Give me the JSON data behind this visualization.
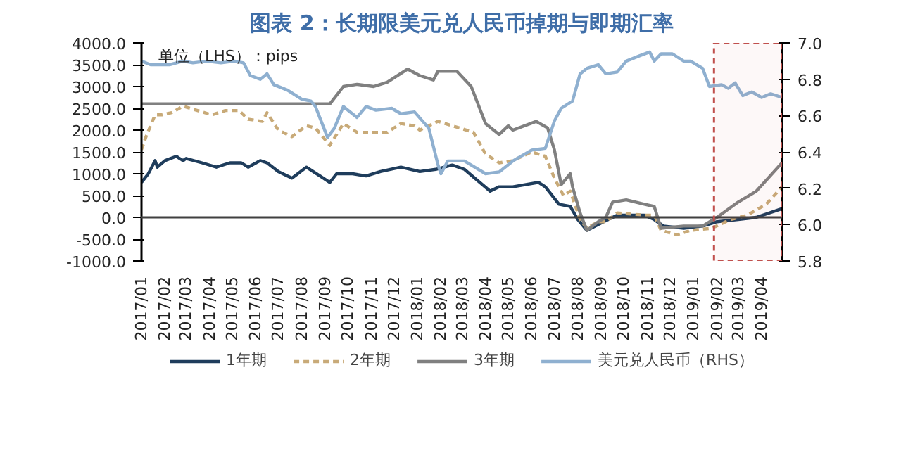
{
  "chart_data": {
    "type": "line",
    "title": "图表 2：长期限美元兑人民币掉期与即期汇率",
    "annotations": [
      "单位（LHS）：pips"
    ],
    "xlim": [
      "2017-01-01",
      "2019-04-28"
    ],
    "xticks": [
      {
        "value": "2017-01-01",
        "label": "2017/01"
      },
      {
        "value": "2017-02-01",
        "label": "2017/02"
      },
      {
        "value": "2017-03-01",
        "label": "2017/03"
      },
      {
        "value": "2017-04-01",
        "label": "2017/04"
      },
      {
        "value": "2017-05-01",
        "label": "2017/05"
      },
      {
        "value": "2017-06-01",
        "label": "2017/06"
      },
      {
        "value": "2017-07-01",
        "label": "2017/07"
      },
      {
        "value": "2017-08-01",
        "label": "2017/08"
      },
      {
        "value": "2017-09-01",
        "label": "2017/09"
      },
      {
        "value": "2017-10-01",
        "label": "2017/10"
      },
      {
        "value": "2017-11-01",
        "label": "2017/11"
      },
      {
        "value": "2017-12-01",
        "label": "2017/12"
      },
      {
        "value": "2018-01-01",
        "label": "2018/01"
      },
      {
        "value": "2018-02-01",
        "label": "2018/02"
      },
      {
        "value": "2018-03-01",
        "label": "2018/03"
      },
      {
        "value": "2018-04-01",
        "label": "2018/04"
      },
      {
        "value": "2018-05-01",
        "label": "2018/05"
      },
      {
        "value": "2018-06-01",
        "label": "2018/06"
      },
      {
        "value": "2018-07-01",
        "label": "2018/07"
      },
      {
        "value": "2018-08-01",
        "label": "2018/08"
      },
      {
        "value": "2018-09-01",
        "label": "2018/09"
      },
      {
        "value": "2018-10-01",
        "label": "2018/10"
      },
      {
        "value": "2018-11-01",
        "label": "2018/11"
      },
      {
        "value": "2018-12-01",
        "label": "2018/12"
      },
      {
        "value": "2019-01-01",
        "label": "2019/01"
      },
      {
        "value": "2019-02-01",
        "label": "2019/02"
      },
      {
        "value": "2019-03-01",
        "label": "2019/03"
      },
      {
        "value": "2019-04-01",
        "label": "2019/04"
      }
    ],
    "ylim": [
      -1000,
      4000
    ],
    "yticks": [
      {
        "value": -1000,
        "label": "-1000.0"
      },
      {
        "value": -500,
        "label": "-500.0"
      },
      {
        "value": 0,
        "label": "0.0"
      },
      {
        "value": 500,
        "label": "500.0"
      },
      {
        "value": 1000,
        "label": "1000.0"
      },
      {
        "value": 1500,
        "label": "1500.0"
      },
      {
        "value": 2000,
        "label": "2000.0"
      },
      {
        "value": 2500,
        "label": "2500.0"
      },
      {
        "value": 3000,
        "label": "3000.0"
      },
      {
        "value": 3500,
        "label": "3500.0"
      },
      {
        "value": 4000,
        "label": "4000.0"
      }
    ],
    "y2lim": [
      5.8,
      7.0
    ],
    "y2ticks": [
      {
        "value": 5.8,
        "label": "5.8"
      },
      {
        "value": 6.0,
        "label": "6.0"
      },
      {
        "value": 6.2,
        "label": "6.2"
      },
      {
        "value": 6.4,
        "label": "6.4"
      },
      {
        "value": 6.6,
        "label": "6.6"
      },
      {
        "value": 6.8,
        "label": "6.8"
      },
      {
        "value": 7.0,
        "label": "7.0"
      }
    ],
    "grid": false,
    "legend": "bottom",
    "ref_lines": [
      {
        "axis": "y",
        "value": 0,
        "color": "#404040"
      }
    ],
    "bands": [
      {
        "axis": "x",
        "from": "2019-01-28",
        "to": "2019-04-28",
        "color": "#c0504d"
      }
    ],
    "series": [
      {
        "name": "1年期",
        "color": "#1f3d5c",
        "line_style": "solid",
        "x": [
          "2017-01-01",
          "2017-01-10",
          "2017-01-19",
          "2017-01-22",
          "2017-02-01",
          "2017-02-16",
          "2017-02-25",
          "2017-03-01",
          "2017-03-22",
          "2017-04-10",
          "2017-04-28",
          "2017-05-13",
          "2017-05-22",
          "2017-06-07",
          "2017-06-16",
          "2017-07-01",
          "2017-07-19",
          "2017-08-07",
          "2017-08-25",
          "2017-09-07",
          "2017-09-16",
          "2017-10-07",
          "2017-10-25",
          "2017-11-13",
          "2017-12-10",
          "2018-01-04",
          "2018-01-25",
          "2018-02-16",
          "2018-03-04",
          "2018-04-07",
          "2018-04-19",
          "2018-05-07",
          "2018-06-10",
          "2018-06-19",
          "2018-07-07",
          "2018-07-22",
          "2018-08-01",
          "2018-08-13",
          "2018-09-04",
          "2018-09-22",
          "2018-10-28",
          "2018-11-10",
          "2018-11-22",
          "2018-12-19",
          "2019-01-13",
          "2019-02-01",
          "2019-03-01",
          "2019-03-25",
          "2019-04-28"
        ],
        "values": [
          800,
          1000,
          1300,
          1150,
          1300,
          1400,
          1300,
          1350,
          1250,
          1150,
          1250,
          1250,
          1150,
          1300,
          1250,
          1050,
          900,
          1150,
          950,
          800,
          1000,
          1000,
          950,
          1050,
          1150,
          1050,
          1100,
          1200,
          1100,
          600,
          700,
          700,
          800,
          700,
          300,
          250,
          -50,
          -300,
          -100,
          50,
          50,
          -50,
          -200,
          -250,
          -200,
          -100,
          -50,
          0,
          200
        ]
      },
      {
        "name": "2年期",
        "color": "#c8aa78",
        "line_style": "dashed",
        "x": [
          "2017-01-01",
          "2017-01-07",
          "2017-01-19",
          "2017-01-28",
          "2017-02-10",
          "2017-02-25",
          "2017-03-16",
          "2017-04-04",
          "2017-04-22",
          "2017-05-10",
          "2017-05-22",
          "2017-06-10",
          "2017-06-16",
          "2017-07-01",
          "2017-07-19",
          "2017-08-07",
          "2017-08-19",
          "2017-09-07",
          "2017-09-25",
          "2017-10-13",
          "2017-11-07",
          "2017-11-22",
          "2017-12-10",
          "2017-12-28",
          "2018-01-04",
          "2018-01-28",
          "2018-02-16",
          "2018-03-16",
          "2018-04-01",
          "2018-04-19",
          "2018-05-07",
          "2018-06-01",
          "2018-06-19",
          "2018-07-01",
          "2018-07-13",
          "2018-07-22",
          "2018-08-04",
          "2018-08-13",
          "2018-08-28",
          "2018-09-07",
          "2018-09-22",
          "2018-10-28",
          "2018-11-10",
          "2018-11-19",
          "2018-12-10",
          "2018-12-28",
          "2019-01-25",
          "2019-02-19",
          "2019-03-13",
          "2019-04-07",
          "2019-04-28"
        ],
        "values": [
          1550,
          1850,
          2350,
          2350,
          2400,
          2550,
          2450,
          2350,
          2450,
          2450,
          2250,
          2200,
          2400,
          2000,
          1850,
          2100,
          2050,
          1650,
          2150,
          1950,
          1950,
          1950,
          2150,
          2100,
          2000,
          2200,
          2100,
          1950,
          1450,
          1250,
          1300,
          1500,
          1400,
          900,
          500,
          600,
          -50,
          -250,
          -100,
          -100,
          100,
          50,
          50,
          -300,
          -400,
          -300,
          -250,
          -50,
          50,
          300,
          700
        ]
      },
      {
        "name": "3年期",
        "color": "#808080",
        "line_style": "solid",
        "x": [
          "2017-01-01",
          "2017-09-07",
          "2017-09-25",
          "2017-10-13",
          "2017-11-04",
          "2017-11-22",
          "2017-12-10",
          "2017-12-19",
          "2018-01-04",
          "2018-01-22",
          "2018-01-28",
          "2018-02-22",
          "2018-03-13",
          "2018-04-01",
          "2018-04-19",
          "2018-05-01",
          "2018-05-07",
          "2018-06-07",
          "2018-06-22",
          "2018-07-01",
          "2018-07-10",
          "2018-07-22",
          "2018-07-25",
          "2018-08-04",
          "2018-08-13",
          "2018-08-28",
          "2018-09-07",
          "2018-09-16",
          "2018-10-04",
          "2018-10-28",
          "2018-11-10",
          "2018-11-19",
          "2018-12-19",
          "2019-01-13",
          "2019-02-01",
          "2019-03-01",
          "2019-03-25",
          "2019-04-28"
        ],
        "values": [
          2600,
          2600,
          3000,
          3050,
          3000,
          3100,
          3300,
          3400,
          3250,
          3150,
          3350,
          3350,
          3000,
          2150,
          1900,
          2100,
          2000,
          2200,
          2050,
          1550,
          750,
          1000,
          700,
          100,
          -300,
          -100,
          0,
          350,
          400,
          300,
          250,
          -250,
          -200,
          -200,
          0,
          350,
          600,
          1250
        ]
      },
      {
        "name": "美元兑人民币（RHS）",
        "color": "#8fb0d0",
        "line_style": "solid",
        "axis": "y2",
        "x": [
          "2017-01-01",
          "2017-01-13",
          "2017-02-07",
          "2017-02-25",
          "2017-03-10",
          "2017-03-28",
          "2017-04-16",
          "2017-05-04",
          "2017-05-16",
          "2017-05-25",
          "2017-06-07",
          "2017-06-16",
          "2017-06-25",
          "2017-07-13",
          "2017-08-01",
          "2017-08-13",
          "2017-08-19",
          "2017-09-04",
          "2017-09-13",
          "2017-09-25",
          "2017-10-13",
          "2017-10-25",
          "2017-11-07",
          "2017-11-28",
          "2017-12-10",
          "2017-12-28",
          "2018-01-16",
          "2018-01-28",
          "2018-02-01",
          "2018-02-10",
          "2018-03-04",
          "2018-04-01",
          "2018-04-19",
          "2018-05-07",
          "2018-06-01",
          "2018-06-19",
          "2018-07-01",
          "2018-07-10",
          "2018-07-25",
          "2018-08-04",
          "2018-08-13",
          "2018-08-28",
          "2018-09-07",
          "2018-09-22",
          "2018-10-04",
          "2018-10-22",
          "2018-11-04",
          "2018-11-10",
          "2018-11-19",
          "2018-12-04",
          "2018-12-19",
          "2018-12-28",
          "2019-01-13",
          "2019-01-22",
          "2019-02-07",
          "2019-02-16",
          "2019-02-25",
          "2019-03-07",
          "2019-03-19",
          "2019-04-01",
          "2019-04-13",
          "2019-04-28"
        ],
        "values": [
          6.9,
          6.88,
          6.88,
          6.9,
          6.89,
          6.9,
          6.89,
          6.9,
          6.89,
          6.82,
          6.8,
          6.83,
          6.77,
          6.74,
          6.69,
          6.68,
          6.65,
          6.48,
          6.53,
          6.65,
          6.59,
          6.65,
          6.63,
          6.64,
          6.61,
          6.62,
          6.53,
          6.33,
          6.28,
          6.35,
          6.35,
          6.28,
          6.29,
          6.35,
          6.41,
          6.42,
          6.57,
          6.64,
          6.68,
          6.83,
          6.86,
          6.88,
          6.83,
          6.84,
          6.9,
          6.93,
          6.95,
          6.9,
          6.94,
          6.94,
          6.9,
          6.9,
          6.86,
          6.76,
          6.77,
          6.75,
          6.78,
          6.71,
          6.73,
          6.7,
          6.72,
          6.7
        ]
      }
    ]
  }
}
